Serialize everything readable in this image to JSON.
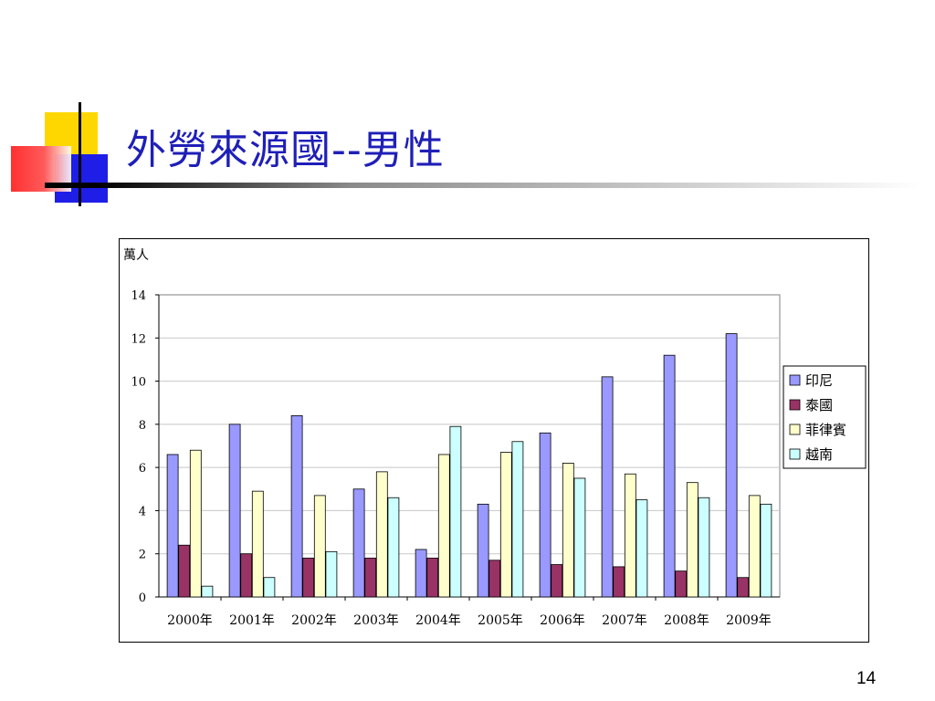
{
  "slide": {
    "title": "外勞來源國--男性",
    "page_number": "14"
  },
  "colors": {
    "title": "#1f1fb8",
    "series": [
      "#9999ff",
      "#993366",
      "#ffffcc",
      "#ccffff"
    ]
  },
  "chart_data": {
    "type": "bar",
    "title": "",
    "unit_label": "萬人",
    "xlabel": "",
    "ylabel": "",
    "ylim": [
      0,
      14
    ],
    "yticks": [
      0,
      2,
      4,
      6,
      8,
      10,
      12,
      14
    ],
    "grid": true,
    "legend_position": "right",
    "categories": [
      "2000年",
      "2001年",
      "2002年",
      "2003年",
      "2004年",
      "2005年",
      "2006年",
      "2007年",
      "2008年",
      "2009年"
    ],
    "series": [
      {
        "name": "印尼",
        "values": [
          6.6,
          8.0,
          8.4,
          5.0,
          2.2,
          4.3,
          7.6,
          10.2,
          11.2,
          12.2
        ]
      },
      {
        "name": "泰國",
        "values": [
          2.4,
          2.0,
          1.8,
          1.8,
          1.8,
          1.7,
          1.5,
          1.4,
          1.2,
          0.9
        ]
      },
      {
        "name": "菲律賓",
        "values": [
          6.8,
          4.9,
          4.7,
          5.8,
          6.6,
          6.7,
          6.2,
          5.7,
          5.3,
          4.7
        ]
      },
      {
        "name": "越南",
        "values": [
          0.5,
          0.9,
          2.1,
          4.6,
          7.9,
          7.2,
          5.5,
          4.5,
          4.6,
          4.3
        ]
      }
    ]
  }
}
